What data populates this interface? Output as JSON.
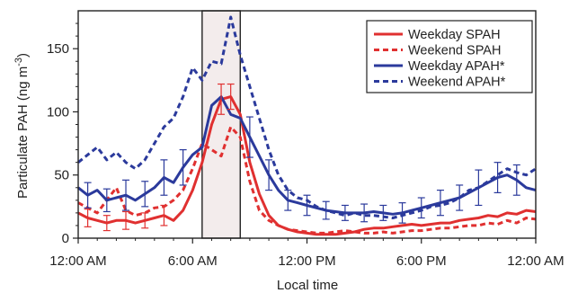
{
  "chart_data": {
    "type": "line",
    "xlabel": "Local time",
    "ylabel": "Particulate PAH (ng m",
    "ylabel_sup": "-3",
    "ylabel_close": ")",
    "xlim": [
      0,
      24
    ],
    "ylim": [
      0,
      180
    ],
    "x_ticks": [
      {
        "value": 0,
        "label": "12:00 AM"
      },
      {
        "value": 6,
        "label": "6:00 AM"
      },
      {
        "value": 12,
        "label": "12:00 PM"
      },
      {
        "value": 18,
        "label": "6:00 PM"
      },
      {
        "value": 24,
        "label": "12:00 AM"
      }
    ],
    "y_ticks": [
      0,
      50,
      100,
      150
    ],
    "highlight_band": {
      "x_start": 6.5,
      "x_end": 8.5,
      "color": "#f3ecec"
    },
    "legend": {
      "position": "top-right"
    },
    "series": [
      {
        "name": "Weekday SPAH",
        "color": "#e03030",
        "dash": "solid",
        "x": [
          0,
          0.5,
          1,
          1.5,
          2,
          2.5,
          3,
          3.5,
          4,
          4.5,
          5,
          5.5,
          6,
          6.5,
          7,
          7.5,
          8,
          8.5,
          9,
          9.5,
          10,
          10.5,
          11,
          11.5,
          12,
          12.5,
          13,
          13.5,
          14,
          14.5,
          15,
          15.5,
          16,
          16.5,
          17,
          17.5,
          18,
          18.5,
          19,
          19.5,
          20,
          20.5,
          21,
          21.5,
          22,
          22.5,
          23,
          23.5,
          24
        ],
        "y": [
          20,
          16,
          14,
          12,
          14,
          14,
          12,
          14,
          16,
          18,
          14,
          22,
          38,
          60,
          90,
          110,
          112,
          98,
          60,
          35,
          18,
          10,
          7,
          5,
          4,
          3,
          3,
          3,
          4,
          5,
          7,
          8,
          8,
          9,
          10,
          11,
          10,
          11,
          12,
          12,
          14,
          15,
          16,
          18,
          17,
          20,
          19,
          22,
          21
        ],
        "errors": [
          {
            "x": 0.5,
            "y": 16,
            "e": 7
          },
          {
            "x": 1.5,
            "y": 12,
            "e": 6
          },
          {
            "x": 2.5,
            "y": 14,
            "e": 7
          },
          {
            "x": 3.5,
            "y": 14,
            "e": 6
          },
          {
            "x": 4.5,
            "y": 18,
            "e": 8
          },
          {
            "x": 7.5,
            "y": 110,
            "e": 12
          },
          {
            "x": 8,
            "y": 112,
            "e": 10
          }
        ]
      },
      {
        "name": "Weekend SPAH",
        "color": "#e03030",
        "dash": "dashed",
        "x": [
          0,
          0.5,
          1,
          1.5,
          2,
          2.5,
          3,
          3.5,
          4,
          4.5,
          5,
          5.5,
          6,
          6.5,
          7,
          7.5,
          8,
          8.5,
          9,
          9.5,
          10,
          10.5,
          11,
          11.5,
          12,
          12.5,
          13,
          13.5,
          14,
          14.5,
          15,
          15.5,
          16,
          16.5,
          17,
          17.5,
          18,
          18.5,
          19,
          19.5,
          20,
          20.5,
          21,
          21.5,
          22,
          22.5,
          23,
          23.5,
          24
        ],
        "y": [
          28,
          24,
          20,
          30,
          40,
          22,
          18,
          20,
          24,
          25,
          30,
          38,
          55,
          75,
          70,
          65,
          88,
          80,
          45,
          22,
          14,
          10,
          7,
          6,
          5,
          4,
          4,
          5,
          6,
          5,
          4,
          4,
          5,
          4,
          5,
          6,
          6,
          7,
          8,
          8,
          9,
          10,
          10,
          12,
          11,
          14,
          12,
          16,
          15
        ]
      },
      {
        "name": "Weekday APAH*",
        "color": "#2b3a9c",
        "dash": "solid",
        "x": [
          0,
          0.5,
          1,
          1.5,
          2,
          2.5,
          3,
          3.5,
          4,
          4.5,
          5,
          5.5,
          6,
          6.5,
          7,
          7.5,
          8,
          8.5,
          9,
          9.5,
          10,
          10.5,
          11,
          11.5,
          12,
          12.5,
          13,
          13.5,
          14,
          14.5,
          15,
          15.5,
          16,
          16.5,
          17,
          17.5,
          18,
          18.5,
          19,
          19.5,
          20,
          20.5,
          21,
          21.5,
          22,
          22.5,
          23,
          23.5,
          24
        ],
        "y": [
          40,
          34,
          38,
          30,
          32,
          34,
          30,
          35,
          40,
          48,
          44,
          56,
          66,
          72,
          105,
          112,
          98,
          95,
          80,
          65,
          50,
          38,
          30,
          28,
          26,
          24,
          22,
          21,
          20,
          20,
          20,
          21,
          20,
          19,
          20,
          22,
          24,
          26,
          28,
          30,
          32,
          36,
          40,
          44,
          48,
          50,
          46,
          40,
          38
        ],
        "errors": [
          {
            "x": 0.5,
            "y": 34,
            "e": 10
          },
          {
            "x": 1.5,
            "y": 30,
            "e": 9
          },
          {
            "x": 2.5,
            "y": 34,
            "e": 12
          },
          {
            "x": 3.5,
            "y": 35,
            "e": 10
          },
          {
            "x": 4.5,
            "y": 48,
            "e": 14
          },
          {
            "x": 5.5,
            "y": 56,
            "e": 14
          },
          {
            "x": 9,
            "y": 80,
            "e": 16
          },
          {
            "x": 10,
            "y": 50,
            "e": 12
          },
          {
            "x": 11,
            "y": 30,
            "e": 8
          },
          {
            "x": 12,
            "y": 26,
            "e": 8
          },
          {
            "x": 13,
            "y": 22,
            "e": 7
          },
          {
            "x": 14,
            "y": 20,
            "e": 6
          },
          {
            "x": 15,
            "y": 20,
            "e": 7
          },
          {
            "x": 16,
            "y": 20,
            "e": 6
          },
          {
            "x": 17,
            "y": 20,
            "e": 8
          },
          {
            "x": 18,
            "y": 24,
            "e": 8
          },
          {
            "x": 19,
            "y": 28,
            "e": 10
          },
          {
            "x": 20,
            "y": 32,
            "e": 10
          },
          {
            "x": 21,
            "y": 40,
            "e": 14
          },
          {
            "x": 22,
            "y": 48,
            "e": 12
          },
          {
            "x": 23,
            "y": 46,
            "e": 12
          }
        ]
      },
      {
        "name": "Weekend APAH*",
        "color": "#2b3a9c",
        "dash": "dashed",
        "x": [
          0,
          0.5,
          1,
          1.5,
          2,
          2.5,
          3,
          3.5,
          4,
          4.5,
          5,
          5.5,
          6,
          6.5,
          7,
          7.5,
          8,
          8.5,
          9,
          9.5,
          10,
          10.5,
          11,
          11.5,
          12,
          12.5,
          13,
          13.5,
          14,
          14.5,
          15,
          15.5,
          16,
          16.5,
          17,
          17.5,
          18,
          18.5,
          19,
          19.5,
          20,
          20.5,
          21,
          21.5,
          22,
          22.5,
          23,
          23.5,
          24
        ],
        "y": [
          60,
          66,
          72,
          62,
          68,
          60,
          55,
          62,
          75,
          88,
          95,
          112,
          135,
          125,
          140,
          138,
          175,
          145,
          120,
          95,
          70,
          50,
          38,
          32,
          30,
          25,
          22,
          20,
          18,
          20,
          18,
          18,
          17,
          16,
          18,
          20,
          22,
          25,
          26,
          28,
          32,
          38,
          40,
          45,
          50,
          55,
          52,
          50,
          55
        ]
      }
    ]
  }
}
